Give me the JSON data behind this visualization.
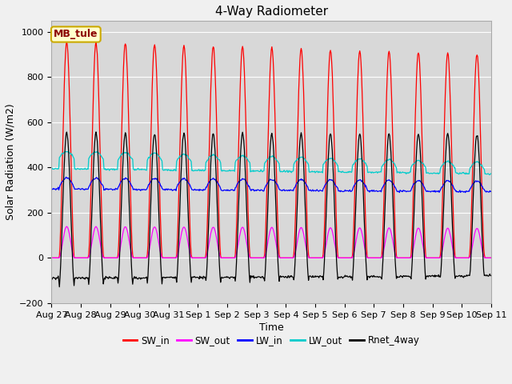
{
  "title": "4-Way Radiometer",
  "xlabel": "Time",
  "ylabel": "Solar Radiation (W/m2)",
  "annotation": "MB_tule",
  "ylim": [
    -200,
    1050
  ],
  "fig_bg_color": "#f0f0f0",
  "plot_bg_color": "#d8d8d8",
  "grid_color": "#ffffff",
  "colors": {
    "SW_in": "#ff0000",
    "SW_out": "#ff00ff",
    "LW_in": "#0000ff",
    "LW_out": "#00cccc",
    "Rnet_4way": "#000000"
  },
  "x_tick_labels": [
    "Aug 27",
    "Aug 28",
    "Aug 29",
    "Aug 30",
    "Aug 31",
    "Sep 1",
    "Sep 2",
    "Sep 3",
    "Sep 4",
    "Sep 5",
    "Sep 6",
    "Sep 7",
    "Sep 8",
    "Sep 9",
    "Sep 10",
    "Sep 11"
  ],
  "n_days": 15,
  "yticks": [
    -200,
    0,
    200,
    400,
    600,
    800,
    1000
  ]
}
